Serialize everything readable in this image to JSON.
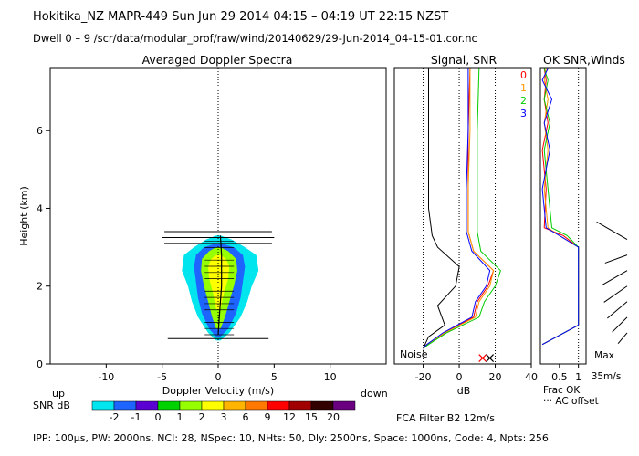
{
  "header": {
    "title": "Hokitika_NZ  MAPR-449  Sun Jun 29 2014 04:15 – 04:19 UT 22:15 NZST",
    "dwell": "Dwell  0 –  9   /scr/data/modular_prof/raw/wind/20140629/29-Jun-2014_04-15-01.cor.nc"
  },
  "footer": {
    "params": "IPP: 100μs,  PW: 2000ns,  NCI:  28,  NSpec: 10, NHts: 50,  Dly: 2500ns,  Space: 1000ns,  Code: 4,  Npts: 256",
    "filter": "FCA Filter B2 12m/s"
  },
  "colors": {
    "snr_scale": [
      "#00e5ee",
      "#1e64ff",
      "#5a00d2",
      "#00d200",
      "#96ff00",
      "#ffff00",
      "#ffb400",
      "#ff7800",
      "#ff0000",
      "#a00000",
      "#330000",
      "#6a0080"
    ],
    "trace_0": "#ff0000",
    "trace_1": "#ff9900",
    "trace_2": "#00cc00",
    "trace_3": "#0000ff"
  },
  "chart_data": [
    {
      "type": "heatmap",
      "title": "Averaged Doppler Spectra",
      "xlabel": "Doppler Velocity (m/s)",
      "ylabel": "Height (km)",
      "x_ticks": [
        -10,
        -5,
        0,
        5,
        10
      ],
      "y_ticks": [
        0,
        2,
        4,
        6
      ],
      "xlim": [
        -15,
        15
      ],
      "ylim": [
        0,
        7.6
      ],
      "left_direction_label": "up",
      "right_direction_label": "down",
      "colorbar": {
        "label": "SNR dB",
        "tick_labels": [
          "-2",
          "-1",
          "0",
          "1",
          "2",
          "3",
          "6",
          "9",
          "12",
          "15",
          "20"
        ]
      },
      "spectral_width_bars": [
        {
          "height": 0.65,
          "lo": -4.5,
          "hi": 4.5
        },
        {
          "height": 3.1,
          "lo": -4.8,
          "hi": 4.8
        },
        {
          "height": 3.25,
          "lo": -5.0,
          "hi": 5.0
        },
        {
          "height": 3.4,
          "lo": -4.8,
          "hi": 4.8
        }
      ],
      "velocity_trace": [
        {
          "height": 0.75,
          "v": 0.0
        },
        {
          "height": 1.2,
          "v": 0.1
        },
        {
          "height": 1.6,
          "v": 0.2
        },
        {
          "height": 2.0,
          "v": 0.3
        },
        {
          "height": 2.4,
          "v": 0.3
        },
        {
          "height": 2.8,
          "v": 0.3
        },
        {
          "height": 3.3,
          "v": 0.2
        }
      ],
      "snr_contours": [
        {
          "color": "#00e5ee",
          "half_width": [
            [
              0.6,
              0.2
            ],
            [
              0.8,
              1.0
            ],
            [
              1.2,
              2.0
            ],
            [
              1.6,
              2.6
            ],
            [
              2.0,
              3.0
            ],
            [
              2.4,
              3.6
            ],
            [
              2.8,
              3.4
            ],
            [
              3.0,
              2.4
            ],
            [
              3.2,
              1.2
            ],
            [
              3.3,
              0.2
            ]
          ]
        },
        {
          "color": "#1e64ff",
          "half_width": [
            [
              0.7,
              0.2
            ],
            [
              0.9,
              0.9
            ],
            [
              1.3,
              1.6
            ],
            [
              1.7,
              2.0
            ],
            [
              2.1,
              2.2
            ],
            [
              2.5,
              2.4
            ],
            [
              2.8,
              2.2
            ],
            [
              3.0,
              1.4
            ],
            [
              3.1,
              0.2
            ]
          ]
        },
        {
          "color": "#96ff00",
          "half_width": [
            [
              0.9,
              0.2
            ],
            [
              1.2,
              0.6
            ],
            [
              1.6,
              1.0
            ],
            [
              2.0,
              1.4
            ],
            [
              2.4,
              1.7
            ],
            [
              2.7,
              1.6
            ],
            [
              2.9,
              0.9
            ],
            [
              3.0,
              0.2
            ]
          ]
        },
        {
          "color": "#ffff00",
          "half_width": [
            [
              1.4,
              0.2
            ],
            [
              1.8,
              0.5
            ],
            [
              2.2,
              0.9
            ],
            [
              2.5,
              1.0
            ],
            [
              2.7,
              0.7
            ],
            [
              2.8,
              0.2
            ]
          ]
        }
      ]
    },
    {
      "type": "line",
      "title": "Signal, SNR",
      "xlabel": "dB",
      "x_ticks": [
        -20,
        0,
        20,
        40
      ],
      "xlim": [
        -36,
        40
      ],
      "ylim": [
        0,
        7.6
      ],
      "noise_label": "Noise",
      "series": [
        {
          "name": "signal",
          "color": "#000000",
          "x": [
            -20,
            -19,
            -17,
            -8,
            -12,
            -2,
            0,
            -12,
            -15,
            -17,
            -17,
            -17
          ],
          "y": [
            0.3,
            0.5,
            0.7,
            1.0,
            1.5,
            2.0,
            2.5,
            3.0,
            3.3,
            4.0,
            5.5,
            7.6
          ]
        },
        {
          "name": "snr_0",
          "color": "#ff0000",
          "x": [
            -20,
            -18,
            -8,
            8,
            10,
            16,
            19,
            8,
            5,
            5,
            5,
            6
          ],
          "y": [
            0.4,
            0.5,
            0.8,
            1.2,
            1.6,
            2.0,
            2.4,
            2.9,
            3.4,
            4.5,
            6.0,
            7.6
          ]
        },
        {
          "name": "snr_1",
          "color": "#ff9900",
          "x": [
            -20,
            -18,
            -8,
            9,
            11,
            17,
            19,
            8,
            5,
            5,
            6,
            6
          ],
          "y": [
            0.4,
            0.5,
            0.8,
            1.2,
            1.6,
            2.0,
            2.4,
            2.9,
            3.4,
            4.5,
            6.0,
            7.6
          ]
        },
        {
          "name": "snr_2",
          "color": "#00cc00",
          "x": [
            -20,
            -17,
            -7,
            11,
            14,
            20,
            23,
            12,
            10,
            10,
            10,
            11
          ],
          "y": [
            0.4,
            0.5,
            0.8,
            1.2,
            1.6,
            2.0,
            2.4,
            2.9,
            3.4,
            4.5,
            6.0,
            7.6
          ]
        },
        {
          "name": "snr_3",
          "color": "#0000ff",
          "x": [
            -20,
            -18,
            -9,
            7,
            9,
            15,
            17,
            7,
            4,
            4,
            5,
            5
          ],
          "y": [
            0.4,
            0.5,
            0.8,
            1.2,
            1.6,
            2.0,
            2.4,
            2.9,
            3.4,
            4.5,
            6.0,
            7.6
          ]
        }
      ],
      "noise_markers": [
        {
          "x": 13,
          "y": 0.15,
          "color": "#ff0000"
        },
        {
          "x": 17,
          "y": 0.15,
          "color": "#000000"
        }
      ]
    },
    {
      "type": "line",
      "title": "OK SNR,Winds",
      "legend": [
        "0",
        "1",
        "2",
        "3"
      ],
      "x_tick_labels": [
        "0.5",
        "1"
      ],
      "x_ticks": [
        0.5,
        1.0
      ],
      "xlim": [
        0,
        1.2
      ],
      "ylim": [
        0,
        7.6
      ],
      "xlabel_lines": [
        "Frac OK",
        "··· AC offset"
      ],
      "wind_scale_label": [
        "Max",
        "35m/s"
      ],
      "series": [
        {
          "name": "0",
          "color": "#ff0000",
          "x": [
            0.05,
            1.0,
            1.0,
            0.6,
            0.1,
            0.15,
            0.05,
            0.2,
            0.1,
            0.15,
            0.1
          ],
          "y": [
            0.5,
            1.0,
            3.0,
            3.3,
            3.5,
            4.5,
            5.5,
            6.2,
            6.8,
            7.3,
            7.6
          ]
        },
        {
          "name": "1",
          "color": "#ff9900",
          "x": [
            0.05,
            1.0,
            1.0,
            0.5,
            0.2,
            0.1,
            0.2,
            0.1,
            0.2,
            0.1,
            0.15
          ],
          "y": [
            0.5,
            1.0,
            3.0,
            3.3,
            3.5,
            4.5,
            5.5,
            6.2,
            6.8,
            7.3,
            7.6
          ]
        },
        {
          "name": "2",
          "color": "#00cc00",
          "x": [
            0.05,
            1.0,
            1.0,
            0.7,
            0.3,
            0.2,
            0.1,
            0.25,
            0.1,
            0.2,
            0.1
          ],
          "y": [
            0.5,
            1.0,
            3.0,
            3.3,
            3.5,
            4.5,
            5.5,
            6.2,
            6.8,
            7.3,
            7.6
          ]
        },
        {
          "name": "3",
          "color": "#0000ff",
          "x": [
            0.05,
            1.0,
            1.0,
            0.5,
            0.15,
            0.05,
            0.25,
            0.1,
            0.3,
            0.05,
            0.2
          ],
          "y": [
            0.5,
            1.0,
            3.0,
            3.3,
            3.5,
            4.5,
            5.5,
            6.2,
            6.8,
            7.3,
            7.6
          ]
        }
      ],
      "wind_barbs": [
        {
          "height": 0.8,
          "speed": 12,
          "direction_deg": 40
        },
        {
          "height": 1.2,
          "speed": 18,
          "direction_deg": 45
        },
        {
          "height": 1.6,
          "speed": 22,
          "direction_deg": 50
        },
        {
          "height": 2.0,
          "speed": 24,
          "direction_deg": 55
        },
        {
          "height": 2.4,
          "speed": 25,
          "direction_deg": 60
        },
        {
          "height": 2.8,
          "speed": 20,
          "direction_deg": 70
        },
        {
          "height": 3.2,
          "speed": 30,
          "direction_deg": 120
        }
      ]
    }
  ]
}
